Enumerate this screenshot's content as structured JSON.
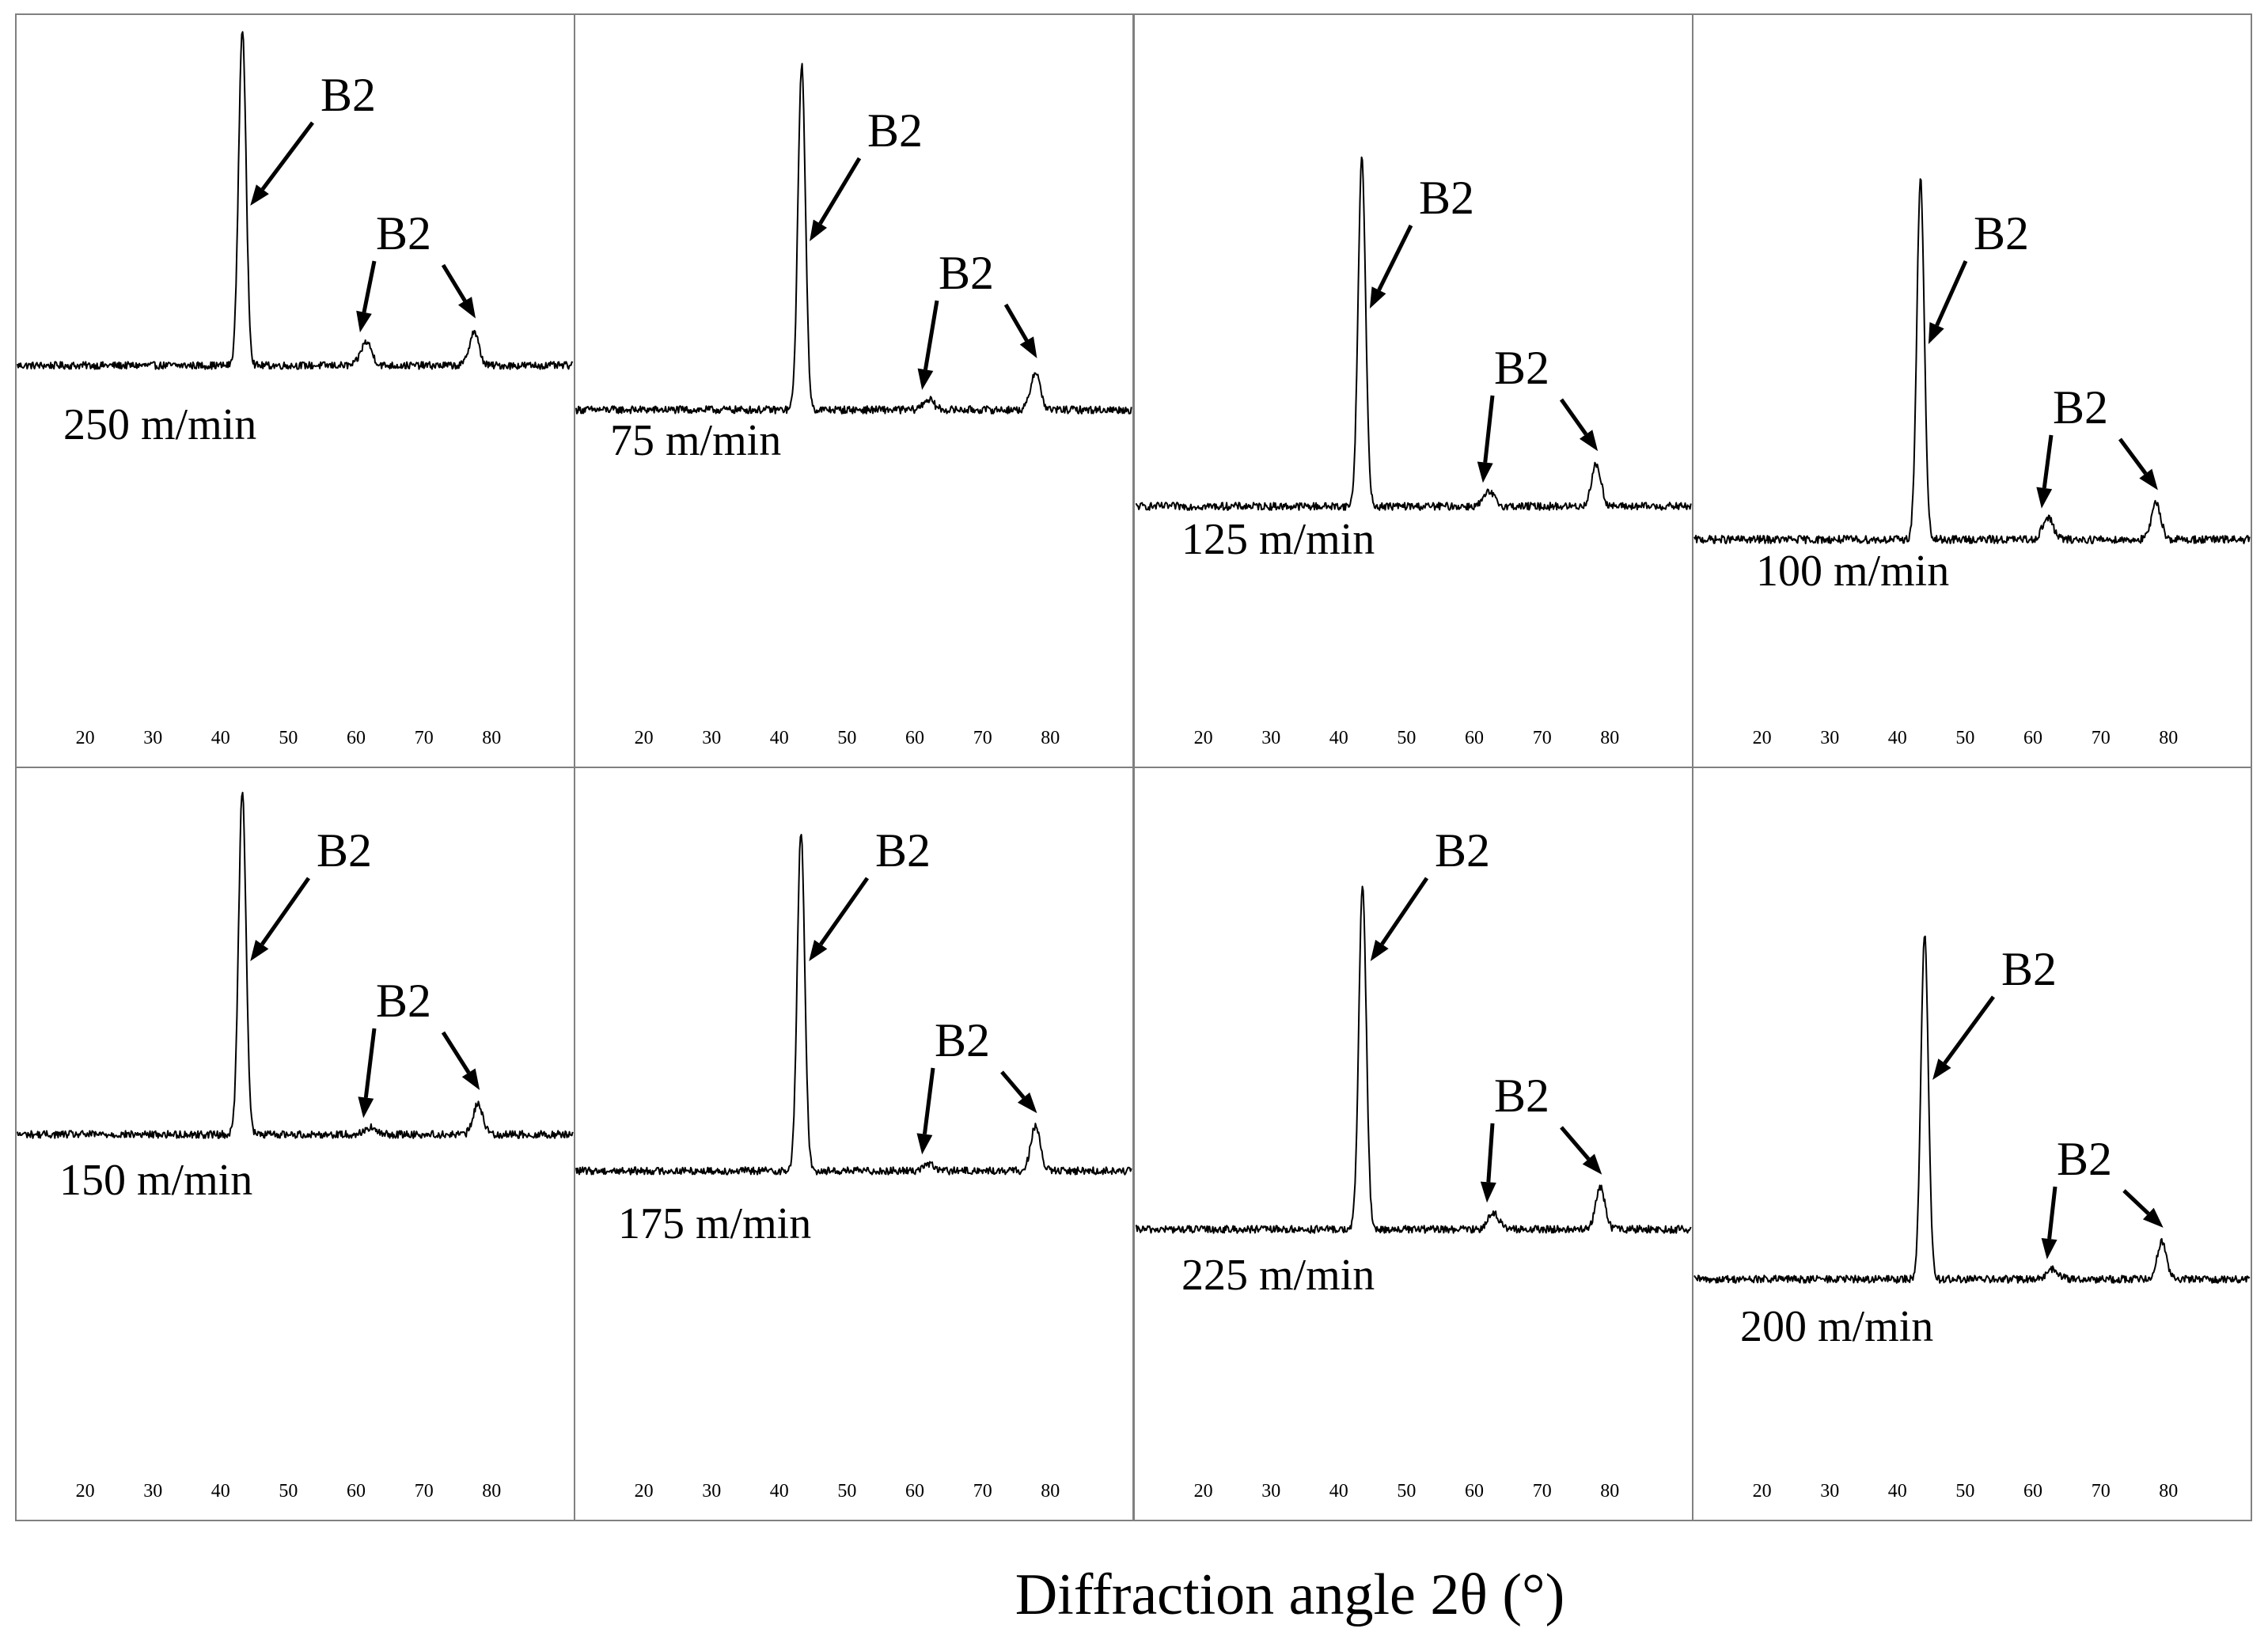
{
  "figure": {
    "xaxis_title": "Diffraction angle 2θ (°)"
  },
  "chart_data": [
    {
      "type": "line",
      "condition": "250 m/min",
      "x_ticks": [
        20,
        30,
        40,
        50,
        60,
        70,
        80
      ],
      "xlim": [
        10,
        92
      ],
      "peaks": [
        {
          "x": 43.2,
          "intensity": 1.0,
          "width": 0.55,
          "label": "B2"
        },
        {
          "x": 61.5,
          "intensity": 0.07,
          "width": 0.8,
          "label": "B2"
        },
        {
          "x": 77.4,
          "intensity": 0.1,
          "width": 0.7,
          "label": "B2"
        }
      ]
    },
    {
      "type": "line",
      "condition": "75 m/min",
      "x_ticks": [
        20,
        30,
        40,
        50,
        60,
        70,
        80
      ],
      "xlim": [
        10,
        92
      ],
      "peaks": [
        {
          "x": 43.3,
          "intensity": 1.0,
          "width": 0.55,
          "label": "B2"
        },
        {
          "x": 62.0,
          "intensity": 0.03,
          "width": 0.8,
          "label": "B2"
        },
        {
          "x": 77.8,
          "intensity": 0.11,
          "width": 0.7,
          "label": "B2"
        }
      ]
    },
    {
      "type": "line",
      "condition": "125 m/min",
      "x_ticks": [
        20,
        30,
        40,
        50,
        60,
        70,
        80
      ],
      "xlim": [
        10,
        92
      ],
      "peaks": [
        {
          "x": 43.4,
          "intensity": 1.0,
          "width": 0.55,
          "label": "B2"
        },
        {
          "x": 62.2,
          "intensity": 0.04,
          "width": 0.8,
          "label": "B2"
        },
        {
          "x": 78.0,
          "intensity": 0.12,
          "width": 0.7,
          "label": "B2"
        }
      ]
    },
    {
      "type": "line",
      "condition": "100 m/min",
      "x_ticks": [
        20,
        30,
        40,
        50,
        60,
        70,
        80
      ],
      "xlim": [
        10,
        92
      ],
      "peaks": [
        {
          "x": 43.4,
          "intensity": 1.0,
          "width": 0.55,
          "label": "B2"
        },
        {
          "x": 62.2,
          "intensity": 0.06,
          "width": 0.8,
          "label": "B2"
        },
        {
          "x": 78.2,
          "intensity": 0.1,
          "width": 0.7,
          "label": "B2"
        }
      ]
    },
    {
      "type": "line",
      "condition": "150 m/min",
      "x_ticks": [
        20,
        30,
        40,
        50,
        60,
        70,
        80
      ],
      "xlim": [
        10,
        92
      ],
      "peaks": [
        {
          "x": 43.2,
          "intensity": 1.0,
          "width": 0.55,
          "label": "B2"
        },
        {
          "x": 62.0,
          "intensity": 0.02,
          "width": 0.8,
          "label": "B2"
        },
        {
          "x": 78.0,
          "intensity": 0.09,
          "width": 0.7,
          "label": "B2"
        }
      ]
    },
    {
      "type": "line",
      "condition": "175 m/min",
      "x_ticks": [
        20,
        30,
        40,
        50,
        60,
        70,
        80
      ],
      "xlim": [
        10,
        92
      ],
      "peaks": [
        {
          "x": 43.2,
          "intensity": 1.0,
          "width": 0.55,
          "label": "B2"
        },
        {
          "x": 62.0,
          "intensity": 0.02,
          "width": 0.8,
          "label": "B2"
        },
        {
          "x": 77.8,
          "intensity": 0.13,
          "width": 0.7,
          "label": "B2"
        }
      ]
    },
    {
      "type": "line",
      "condition": "225 m/min",
      "x_ticks": [
        20,
        30,
        40,
        50,
        60,
        70,
        80
      ],
      "xlim": [
        10,
        92
      ],
      "peaks": [
        {
          "x": 43.5,
          "intensity": 1.0,
          "width": 0.55,
          "label": "B2"
        },
        {
          "x": 62.8,
          "intensity": 0.05,
          "width": 0.8,
          "label": "B2"
        },
        {
          "x": 78.6,
          "intensity": 0.12,
          "width": 0.7,
          "label": "B2"
        }
      ]
    },
    {
      "type": "line",
      "condition": "200 m/min",
      "x_ticks": [
        20,
        30,
        40,
        50,
        60,
        70,
        80
      ],
      "xlim": [
        10,
        92
      ],
      "peaks": [
        {
          "x": 44.0,
          "intensity": 1.0,
          "width": 0.55,
          "label": "B2"
        },
        {
          "x": 63.0,
          "intensity": 0.03,
          "width": 0.8,
          "label": "B2"
        },
        {
          "x": 79.0,
          "intensity": 0.11,
          "width": 0.7,
          "label": "B2"
        }
      ]
    }
  ]
}
